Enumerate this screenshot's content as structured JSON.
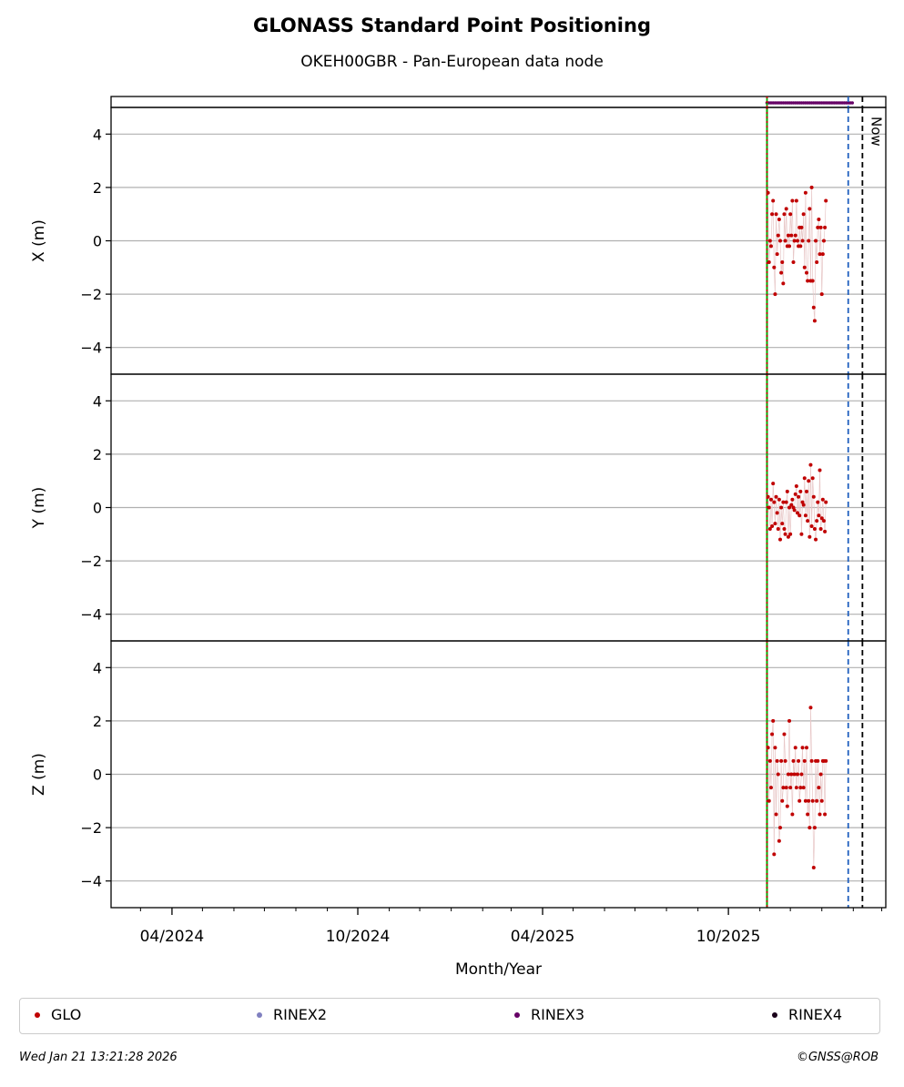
{
  "title": "GLONASS Standard Point Positioning",
  "subtitle": "OKEH00GBR - Pan-European data node",
  "footer": {
    "timestamp": "Wed Jan 21 13:21:28 2026",
    "copyright": "©GNSS@ROB"
  },
  "legend": [
    {
      "label": "GLO",
      "color": "#c00000"
    },
    {
      "label": "RINEX2",
      "color": "#8080c0"
    },
    {
      "label": "RINEX3",
      "color": "#660066"
    },
    {
      "label": "RINEX4",
      "color": "#1a001a"
    }
  ],
  "chart_data": {
    "type": "scatter",
    "xlabel": "Month/Year",
    "x_range": [
      "2024-02-01",
      "2026-03-05"
    ],
    "x_ticks": [
      {
        "date": "2024-04-01",
        "label": "04/2024"
      },
      {
        "date": "2024-10-01",
        "label": "10/2024"
      },
      {
        "date": "2025-04-01",
        "label": "04/2025"
      },
      {
        "date": "2025-10-01",
        "label": "10/2025"
      }
    ],
    "x_minor_ticks": [
      "2024-03-01",
      "2024-05-01",
      "2024-06-01",
      "2024-07-01",
      "2024-08-01",
      "2024-09-01",
      "2024-11-01",
      "2024-12-01",
      "2025-01-01",
      "2025-02-01",
      "2025-03-01",
      "2025-05-01",
      "2025-06-01",
      "2025-07-01",
      "2025-08-01",
      "2025-09-01",
      "2025-11-01",
      "2025-12-01",
      "2026-01-01",
      "2026-02-01",
      "2026-03-01"
    ],
    "ylim": [
      -5,
      5
    ],
    "y_ticks": [
      -4,
      -2,
      0,
      2,
      4
    ],
    "grid": "horizontal",
    "vertical_lines": [
      {
        "date": "2025-11-08",
        "color": "#00aa00",
        "style": "solid"
      },
      {
        "date": "2025-11-08",
        "color": "#c00000",
        "style": "dotted"
      },
      {
        "date": "2026-01-27",
        "color": "#1f5fbf",
        "style": "dashed"
      },
      {
        "date": "2026-02-10",
        "color": "#000000",
        "style": "dashed",
        "label": "Now"
      }
    ],
    "rinex3_coverage": {
      "start": "2025-11-08",
      "end": "2026-02-01",
      "color": "#660066"
    },
    "panels": [
      {
        "ylabel": "X (m)",
        "series": [
          {
            "name": "GLO",
            "color": "#c00000",
            "points": [
              [
                "2025-11-09",
                1.8
              ],
              [
                "2025-11-10",
                -0.8
              ],
              [
                "2025-11-11",
                0.0
              ],
              [
                "2025-11-12",
                -0.2
              ],
              [
                "2025-11-13",
                1.0
              ],
              [
                "2025-11-14",
                1.5
              ],
              [
                "2025-11-15",
                -1.0
              ],
              [
                "2025-11-16",
                -2.0
              ],
              [
                "2025-11-17",
                1.0
              ],
              [
                "2025-11-18",
                -0.5
              ],
              [
                "2025-11-19",
                0.2
              ],
              [
                "2025-11-20",
                0.8
              ],
              [
                "2025-11-21",
                0.0
              ],
              [
                "2025-11-22",
                -1.2
              ],
              [
                "2025-11-23",
                -0.8
              ],
              [
                "2025-11-24",
                -1.6
              ],
              [
                "2025-11-25",
                1.0
              ],
              [
                "2025-11-26",
                0.0
              ],
              [
                "2025-11-27",
                1.2
              ],
              [
                "2025-11-28",
                -0.2
              ],
              [
                "2025-11-29",
                0.2
              ],
              [
                "2025-11-30",
                -0.2
              ],
              [
                "2025-12-01",
                1.0
              ],
              [
                "2025-12-02",
                0.2
              ],
              [
                "2025-12-03",
                1.5
              ],
              [
                "2025-12-04",
                -0.8
              ],
              [
                "2025-12-05",
                0.0
              ],
              [
                "2025-12-06",
                0.2
              ],
              [
                "2025-12-07",
                1.5
              ],
              [
                "2025-12-08",
                0.0
              ],
              [
                "2025-12-09",
                -0.2
              ],
              [
                "2025-12-10",
                0.5
              ],
              [
                "2025-12-11",
                -0.2
              ],
              [
                "2025-12-12",
                0.5
              ],
              [
                "2025-12-13",
                0.0
              ],
              [
                "2025-12-14",
                1.0
              ],
              [
                "2025-12-15",
                -1.0
              ],
              [
                "2025-12-16",
                1.8
              ],
              [
                "2025-12-17",
                -1.2
              ],
              [
                "2025-12-18",
                -1.5
              ],
              [
                "2025-12-19",
                0.0
              ],
              [
                "2025-12-20",
                1.2
              ],
              [
                "2025-12-21",
                -1.5
              ],
              [
                "2025-12-22",
                2.0
              ],
              [
                "2025-12-23",
                -1.5
              ],
              [
                "2025-12-24",
                -2.5
              ],
              [
                "2025-12-25",
                -3.0
              ],
              [
                "2025-12-26",
                0.0
              ],
              [
                "2025-12-27",
                -0.8
              ],
              [
                "2025-12-28",
                0.5
              ],
              [
                "2025-12-29",
                0.8
              ],
              [
                "2025-12-30",
                -0.5
              ],
              [
                "2025-12-31",
                0.5
              ],
              [
                "2026-01-01",
                -2.0
              ],
              [
                "2026-01-02",
                -0.5
              ],
              [
                "2026-01-03",
                0.0
              ],
              [
                "2026-01-04",
                0.5
              ],
              [
                "2026-01-05",
                1.5
              ]
            ]
          }
        ]
      },
      {
        "ylabel": "Y (m)",
        "series": [
          {
            "name": "GLO",
            "color": "#c00000",
            "points": [
              [
                "2025-11-09",
                0.4
              ],
              [
                "2025-11-10",
                0.0
              ],
              [
                "2025-11-11",
                -0.8
              ],
              [
                "2025-11-12",
                0.3
              ],
              [
                "2025-11-13",
                -0.7
              ],
              [
                "2025-11-14",
                0.9
              ],
              [
                "2025-11-15",
                0.2
              ],
              [
                "2025-11-16",
                -0.6
              ],
              [
                "2025-11-17",
                0.4
              ],
              [
                "2025-11-18",
                -0.2
              ],
              [
                "2025-11-19",
                -0.8
              ],
              [
                "2025-11-20",
                0.3
              ],
              [
                "2025-11-21",
                -1.2
              ],
              [
                "2025-11-22",
                0.0
              ],
              [
                "2025-11-23",
                -0.6
              ],
              [
                "2025-11-24",
                0.2
              ],
              [
                "2025-11-25",
                -0.8
              ],
              [
                "2025-11-26",
                -1.0
              ],
              [
                "2025-11-27",
                0.2
              ],
              [
                "2025-11-28",
                0.6
              ],
              [
                "2025-11-29",
                -1.1
              ],
              [
                "2025-11-30",
                0.0
              ],
              [
                "2025-12-01",
                -1.0
              ],
              [
                "2025-12-02",
                0.1
              ],
              [
                "2025-12-03",
                0.3
              ],
              [
                "2025-12-04",
                0.0
              ],
              [
                "2025-12-05",
                -0.1
              ],
              [
                "2025-12-06",
                0.5
              ],
              [
                "2025-12-07",
                0.8
              ],
              [
                "2025-12-08",
                -0.2
              ],
              [
                "2025-12-09",
                0.4
              ],
              [
                "2025-12-10",
                -0.3
              ],
              [
                "2025-12-11",
                0.6
              ],
              [
                "2025-12-12",
                -1.0
              ],
              [
                "2025-12-13",
                0.2
              ],
              [
                "2025-12-14",
                0.1
              ],
              [
                "2025-12-15",
                1.1
              ],
              [
                "2025-12-16",
                -0.3
              ],
              [
                "2025-12-17",
                0.6
              ],
              [
                "2025-12-18",
                -0.5
              ],
              [
                "2025-12-19",
                1.0
              ],
              [
                "2025-12-20",
                -1.1
              ],
              [
                "2025-12-21",
                1.6
              ],
              [
                "2025-12-22",
                -0.7
              ],
              [
                "2025-12-23",
                1.1
              ],
              [
                "2025-12-24",
                0.4
              ],
              [
                "2025-12-25",
                -0.8
              ],
              [
                "2025-12-26",
                -1.2
              ],
              [
                "2025-12-27",
                -0.5
              ],
              [
                "2025-12-28",
                0.2
              ],
              [
                "2025-12-29",
                -0.3
              ],
              [
                "2025-12-30",
                1.4
              ],
              [
                "2025-12-31",
                -0.8
              ],
              [
                "2026-01-01",
                -0.4
              ],
              [
                "2026-01-02",
                0.3
              ],
              [
                "2026-01-03",
                -0.5
              ],
              [
                "2026-01-04",
                -0.9
              ],
              [
                "2026-01-05",
                0.2
              ]
            ]
          }
        ]
      },
      {
        "ylabel": "Z (m)",
        "series": [
          {
            "name": "GLO",
            "color": "#c00000",
            "points": [
              [
                "2025-11-09",
                1.0
              ],
              [
                "2025-11-10",
                -1.0
              ],
              [
                "2025-11-11",
                0.5
              ],
              [
                "2025-11-12",
                -0.5
              ],
              [
                "2025-11-13",
                1.5
              ],
              [
                "2025-11-14",
                2.0
              ],
              [
                "2025-11-15",
                -3.0
              ],
              [
                "2025-11-16",
                1.0
              ],
              [
                "2025-11-17",
                -1.5
              ],
              [
                "2025-11-18",
                0.5
              ],
              [
                "2025-11-19",
                0.0
              ],
              [
                "2025-11-20",
                -2.5
              ],
              [
                "2025-11-21",
                -2.0
              ],
              [
                "2025-11-22",
                0.5
              ],
              [
                "2025-11-23",
                -1.0
              ],
              [
                "2025-11-24",
                -0.5
              ],
              [
                "2025-11-25",
                1.5
              ],
              [
                "2025-11-26",
                0.5
              ],
              [
                "2025-11-27",
                -0.5
              ],
              [
                "2025-11-28",
                -1.2
              ],
              [
                "2025-11-29",
                0.0
              ],
              [
                "2025-11-30",
                2.0
              ],
              [
                "2025-12-01",
                -0.5
              ],
              [
                "2025-12-02",
                0.0
              ],
              [
                "2025-12-03",
                -1.5
              ],
              [
                "2025-12-04",
                0.5
              ],
              [
                "2025-12-05",
                0.0
              ],
              [
                "2025-12-06",
                1.0
              ],
              [
                "2025-12-07",
                -0.5
              ],
              [
                "2025-12-08",
                0.0
              ],
              [
                "2025-12-09",
                0.5
              ],
              [
                "2025-12-10",
                -1.0
              ],
              [
                "2025-12-11",
                -0.5
              ],
              [
                "2025-12-12",
                0.0
              ],
              [
                "2025-12-13",
                1.0
              ],
              [
                "2025-12-14",
                -0.5
              ],
              [
                "2025-12-15",
                0.5
              ],
              [
                "2025-12-16",
                -1.0
              ],
              [
                "2025-12-17",
                1.0
              ],
              [
                "2025-12-18",
                -1.5
              ],
              [
                "2025-12-19",
                -1.0
              ],
              [
                "2025-12-20",
                -2.0
              ],
              [
                "2025-12-21",
                2.5
              ],
              [
                "2025-12-22",
                0.5
              ],
              [
                "2025-12-23",
                -1.0
              ],
              [
                "2025-12-24",
                -3.5
              ],
              [
                "2025-12-25",
                -2.0
              ],
              [
                "2025-12-26",
                0.5
              ],
              [
                "2025-12-27",
                -1.0
              ],
              [
                "2025-12-28",
                0.5
              ],
              [
                "2025-12-29",
                -0.5
              ],
              [
                "2025-12-30",
                -1.5
              ],
              [
                "2025-12-31",
                0.0
              ],
              [
                "2026-01-01",
                -1.0
              ],
              [
                "2026-01-02",
                0.5
              ],
              [
                "2026-01-03",
                0.5
              ],
              [
                "2026-01-04",
                -1.5
              ],
              [
                "2026-01-05",
                0.5
              ]
            ]
          }
        ]
      }
    ]
  }
}
